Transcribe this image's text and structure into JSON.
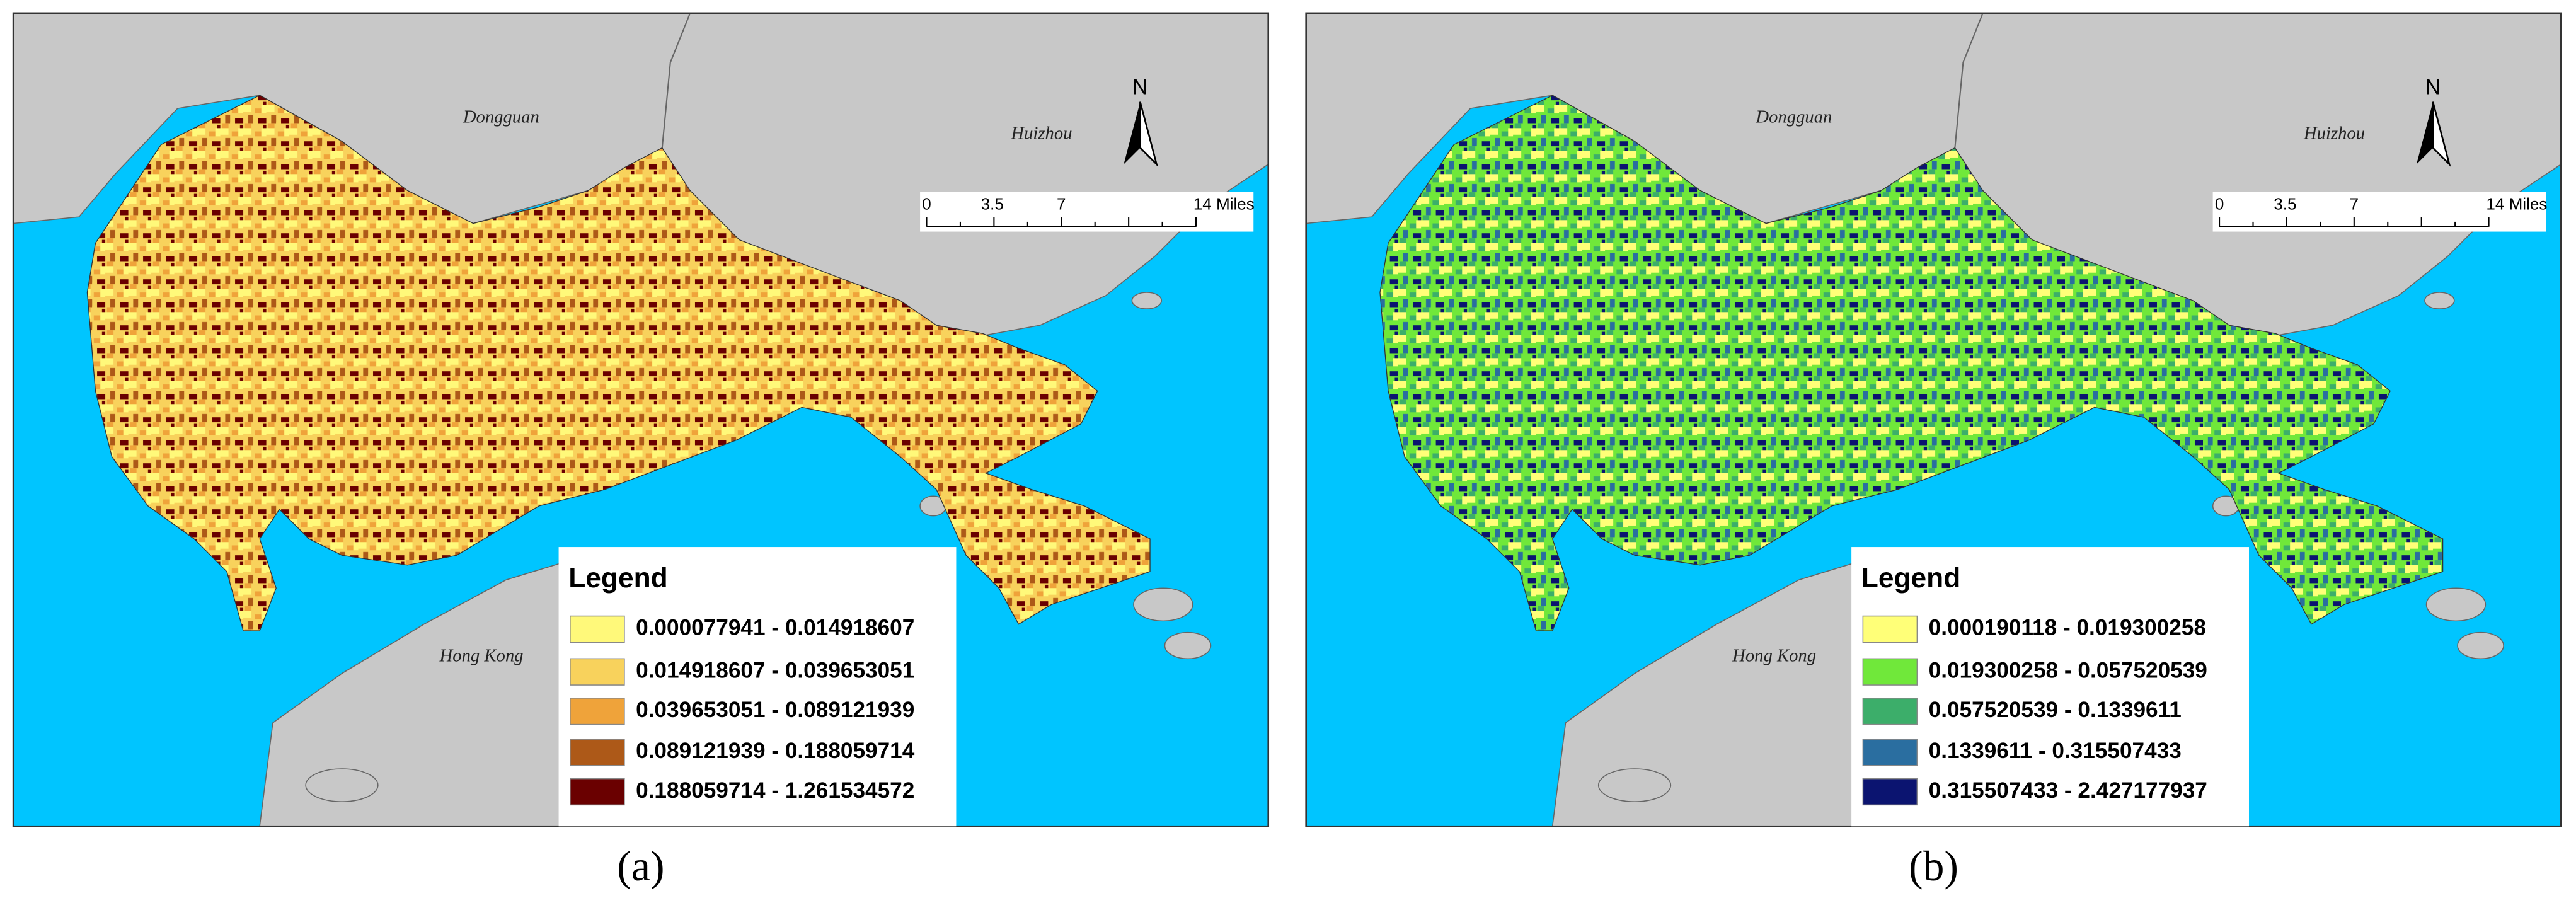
{
  "panels": [
    {
      "caption": "(a)",
      "places": [
        "Dongguan",
        "Huizhou",
        "Hong Kong"
      ],
      "north": "N",
      "scale_labels": [
        "0",
        "3.5",
        "7",
        "14 Miles"
      ],
      "legend": {
        "title": "Legend",
        "items": [
          {
            "label": "0.000077941 - 0.014918607",
            "color": "#fff97a"
          },
          {
            "label": "0.014918607 - 0.039653051",
            "color": "#f8d25c"
          },
          {
            "label": "0.039653051 - 0.089121939",
            "color": "#efa33a"
          },
          {
            "label": "0.089121939 - 0.188059714",
            "color": "#ad5918"
          },
          {
            "label": "0.188059714 - 1.261534572",
            "color": "#6a0000"
          }
        ]
      }
    },
    {
      "caption": "(b)",
      "places": [
        "Dongguan",
        "Huizhou",
        "Hong Kong"
      ],
      "north": "N",
      "scale_labels": [
        "0",
        "3.5",
        "7",
        "14 Miles"
      ],
      "legend": {
        "title": "Legend",
        "items": [
          {
            "label": "0.000190118 - 0.019300258",
            "color": "#ffff78"
          },
          {
            "label": "0.019300258 - 0.057520539",
            "color": "#70e83a"
          },
          {
            "label": "0.057520539 - 0.1339611",
            "color": "#3cae6a"
          },
          {
            "label": "0.1339611 - 0.315507433",
            "color": "#2a6ea0"
          },
          {
            "label": "0.315507433 - 2.427177937",
            "color": "#0b1470"
          }
        ]
      }
    }
  ]
}
